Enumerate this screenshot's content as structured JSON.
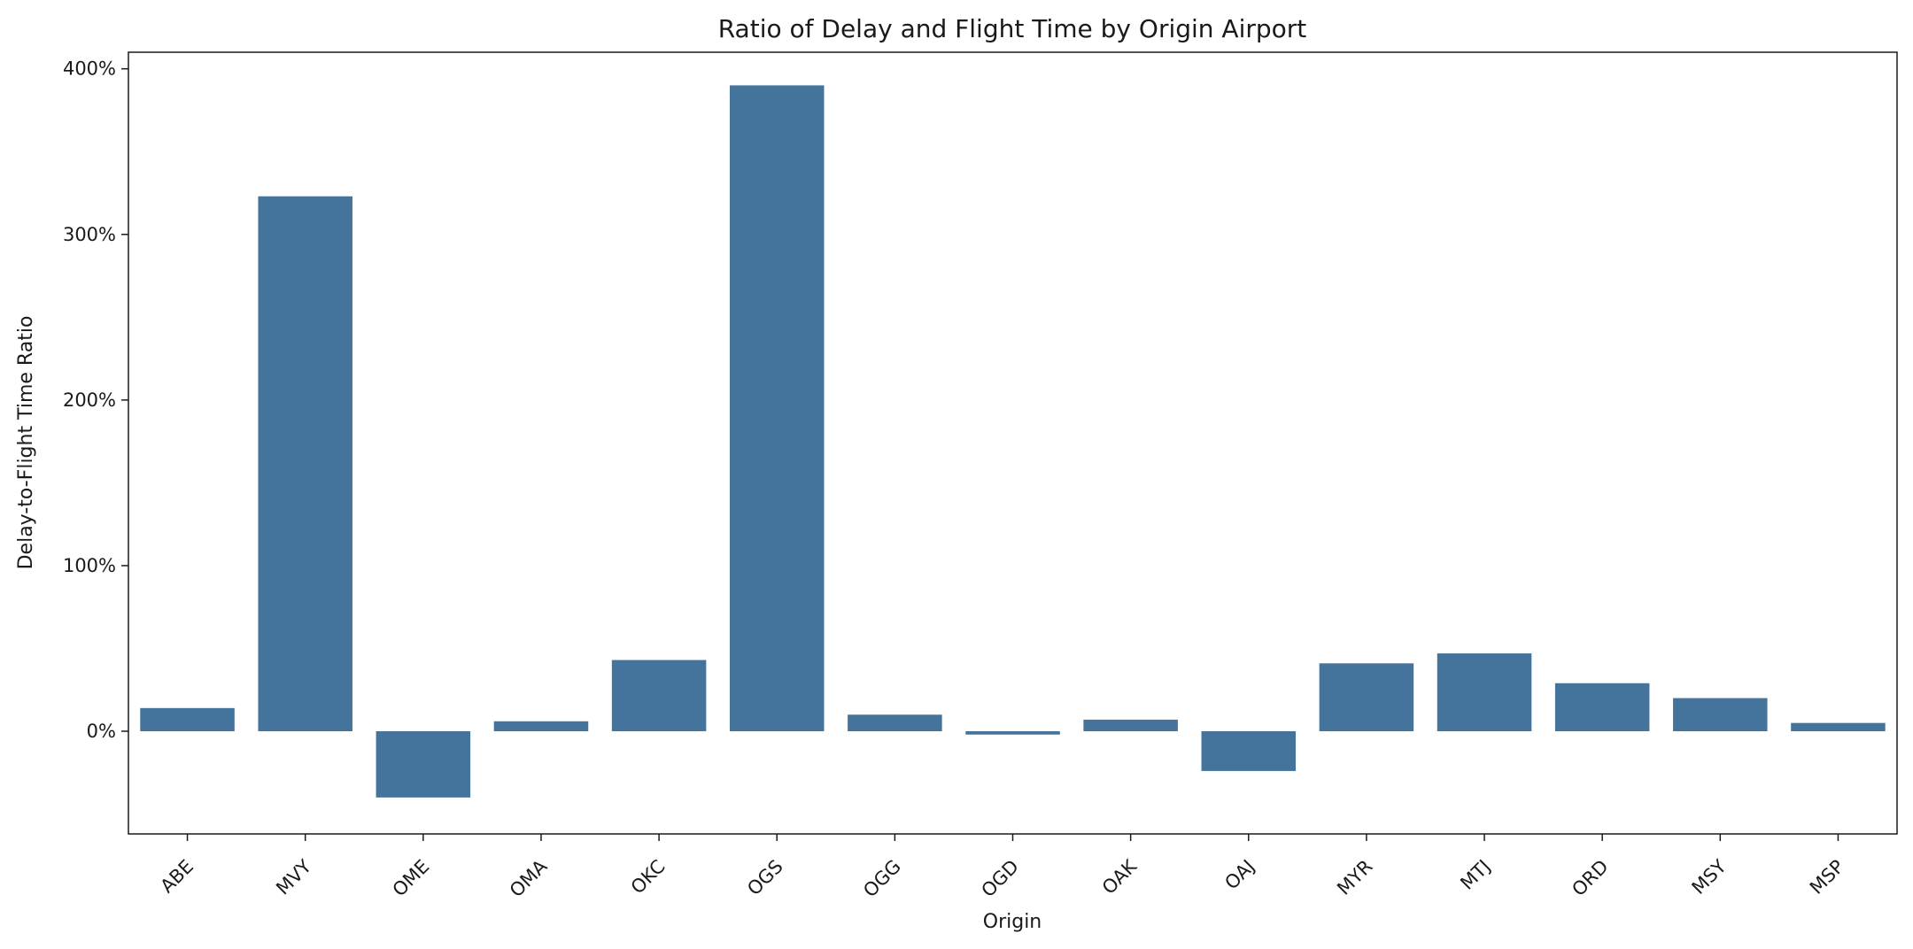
{
  "chart_data": {
    "type": "bar",
    "title": "Ratio of Delay and Flight Time by Origin Airport",
    "xlabel": "Origin",
    "ylabel": "Delay-to-Flight Time Ratio",
    "categories": [
      "ABE",
      "MVY",
      "OME",
      "OMA",
      "OKC",
      "OGS",
      "OGG",
      "OGD",
      "OAK",
      "OAJ",
      "MYR",
      "MTJ",
      "ORD",
      "MSY",
      "MSP"
    ],
    "values": [
      14,
      323,
      -40,
      6,
      43,
      390,
      10,
      -2,
      7,
      -24,
      41,
      47,
      29,
      20,
      5
    ],
    "value_unit": "%",
    "ylim": [
      -62,
      410
    ],
    "yticks": [
      0,
      100,
      200,
      300,
      400
    ],
    "ytick_labels": [
      "0%",
      "100%",
      "200%",
      "300%",
      "400%"
    ],
    "bar_color": "#44739c",
    "grid": false,
    "legend": "none"
  }
}
